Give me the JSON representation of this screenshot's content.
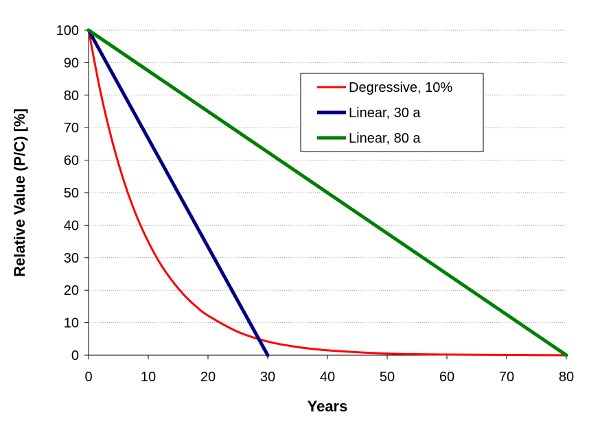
{
  "chart_data": {
    "type": "line",
    "xlabel": "Years",
    "ylabel": "Relative Value (P/C) [%]",
    "xlim": [
      0,
      80
    ],
    "ylim": [
      0,
      100
    ],
    "x_ticks": [
      0,
      10,
      20,
      30,
      40,
      50,
      60,
      70,
      80
    ],
    "y_ticks": [
      0,
      10,
      20,
      30,
      40,
      50,
      60,
      70,
      80,
      90,
      100
    ],
    "grid": "horizontal dotted",
    "legend_position": "upper-middle-right",
    "series": [
      {
        "name": "Degressive, 10%",
        "color": "#ff0000",
        "x": [
          0,
          2,
          4,
          6,
          8,
          10,
          12,
          14,
          16,
          18,
          20,
          25,
          30,
          35,
          40,
          50,
          60,
          70,
          80
        ],
        "y": [
          100,
          81.0,
          65.6,
          53.1,
          43.0,
          34.9,
          28.2,
          22.9,
          18.5,
          15.0,
          12.2,
          7.2,
          4.2,
          2.5,
          1.5,
          0.5,
          0.2,
          0.1,
          0.0
        ]
      },
      {
        "name": "Linear, 30 a",
        "color": "#000080",
        "x": [
          0,
          30
        ],
        "y": [
          100,
          0
        ]
      },
      {
        "name": "Linear, 80 a",
        "color": "#008000",
        "x": [
          0,
          80
        ],
        "y": [
          100,
          0
        ]
      }
    ]
  }
}
